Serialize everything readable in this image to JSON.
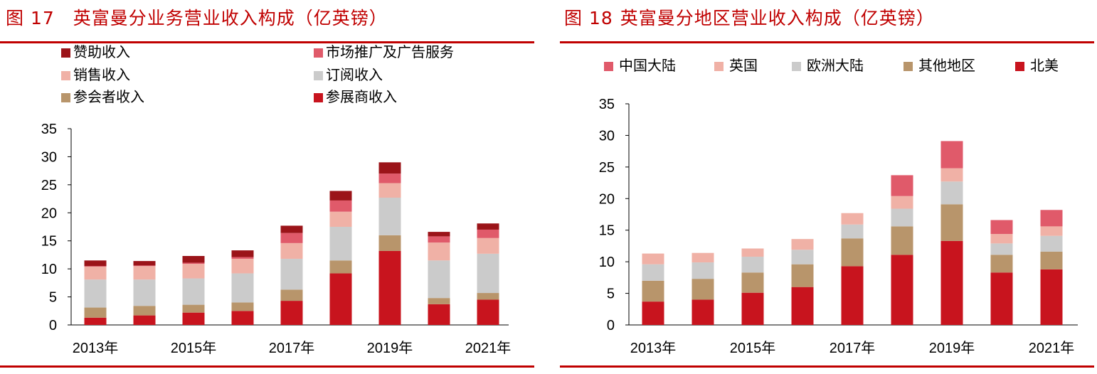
{
  "figures": [
    {
      "number": "图 17",
      "title": "英富曼分业务营业收入构成（亿英镑）"
    },
    {
      "number": "图 18",
      "title": "英富曼分地区营业收入构成（亿英镑）"
    }
  ],
  "chart_data": [
    {
      "type": "bar",
      "stacked": true,
      "title": "",
      "ylim": [
        0,
        35
      ],
      "yticks": [
        0,
        5,
        10,
        15,
        20,
        25,
        30,
        35
      ],
      "categories": [
        "2013年",
        "2014年",
        "2015年",
        "2016年",
        "2017年",
        "2018年",
        "2019年",
        "2020年",
        "2021年"
      ],
      "xtick_labels": [
        "2013年",
        "",
        "2015年",
        "",
        "2017年",
        "",
        "2019年",
        "",
        "2021年"
      ],
      "legend_position": "top",
      "series": [
        {
          "name": "参展商收入",
          "color": "#c8141e",
          "values": [
            1.3,
            1.7,
            2.2,
            2.5,
            4.3,
            9.2,
            13.2,
            3.7,
            4.5
          ]
        },
        {
          "name": "参会者收入",
          "color": "#b8956b",
          "values": [
            1.8,
            1.7,
            1.4,
            1.5,
            2.0,
            2.3,
            2.8,
            1.1,
            1.2
          ]
        },
        {
          "name": "订阅收入",
          "color": "#cbcbcb",
          "values": [
            5.0,
            4.7,
            4.7,
            5.2,
            5.5,
            6.0,
            6.7,
            6.7,
            7.0
          ]
        },
        {
          "name": "销售收入",
          "color": "#f0b1a6",
          "values": [
            2.3,
            2.4,
            2.6,
            2.6,
            2.8,
            2.7,
            2.6,
            3.2,
            2.8
          ]
        },
        {
          "name": "市场推广及广告服务",
          "color": "#e05a6a",
          "values": [
            0.1,
            0.1,
            0.2,
            0.3,
            1.8,
            2.0,
            1.7,
            1.1,
            1.5
          ]
        },
        {
          "name": "赞助收入",
          "color": "#9b1419",
          "values": [
            1.0,
            0.8,
            1.2,
            1.2,
            1.3,
            1.7,
            2.0,
            0.8,
            1.1
          ]
        }
      ]
    },
    {
      "type": "bar",
      "stacked": true,
      "title": "",
      "ylim": [
        0,
        35
      ],
      "yticks": [
        0,
        5,
        10,
        15,
        20,
        25,
        30,
        35
      ],
      "categories": [
        "2013年",
        "2014年",
        "2015年",
        "2016年",
        "2017年",
        "2018年",
        "2019年",
        "2020年",
        "2021年"
      ],
      "xtick_labels": [
        "2013年",
        "",
        "2015年",
        "",
        "2017年",
        "",
        "2019年",
        "",
        "2021年"
      ],
      "legend_position": "top",
      "series": [
        {
          "name": "北美",
          "color": "#c8141e",
          "values": [
            3.7,
            4.0,
            5.1,
            6.0,
            9.3,
            11.1,
            13.3,
            8.3,
            8.8
          ]
        },
        {
          "name": "其他地区",
          "color": "#b8956b",
          "values": [
            3.3,
            3.3,
            3.2,
            3.6,
            4.4,
            4.5,
            5.8,
            2.8,
            2.8
          ]
        },
        {
          "name": "欧洲大陆",
          "color": "#cbcbcb",
          "values": [
            2.6,
            2.6,
            2.5,
            2.3,
            2.2,
            2.8,
            3.6,
            1.8,
            2.5
          ]
        },
        {
          "name": "英国",
          "color": "#f0b1a6",
          "values": [
            1.7,
            1.5,
            1.3,
            1.7,
            1.8,
            2.0,
            2.1,
            1.5,
            1.5
          ]
        },
        {
          "name": "中国大陆",
          "color": "#e05a6a",
          "values": [
            0,
            0,
            0,
            0,
            0,
            3.3,
            4.3,
            2.2,
            2.6
          ]
        }
      ]
    }
  ]
}
